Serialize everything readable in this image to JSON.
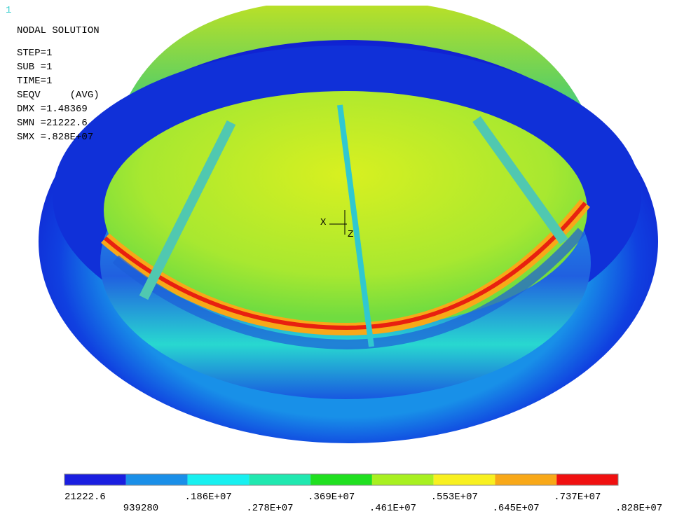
{
  "window_number": "1",
  "title": "NODAL SOLUTION",
  "info": [
    "STEP=1",
    "SUB =1",
    "TIME=1",
    "SEQV     (AVG)",
    "DMX =1.48369",
    "SMN =21222.6",
    "SMX =.828E+07"
  ],
  "triad": {
    "x": "X",
    "z": "Z"
  },
  "legend": {
    "colors": [
      "#1a1ee0",
      "#1a8fe8",
      "#18f0f0",
      "#20e8b0",
      "#20e020",
      "#a8f020",
      "#f8f020",
      "#f8a818",
      "#f01010"
    ],
    "labels": [
      "21222.6",
      "939280",
      ".186E+07",
      ".278E+07",
      ".369E+07",
      ".461E+07",
      ".553E+07",
      ".645E+07",
      ".737E+07",
      ".828E+07"
    ]
  }
}
